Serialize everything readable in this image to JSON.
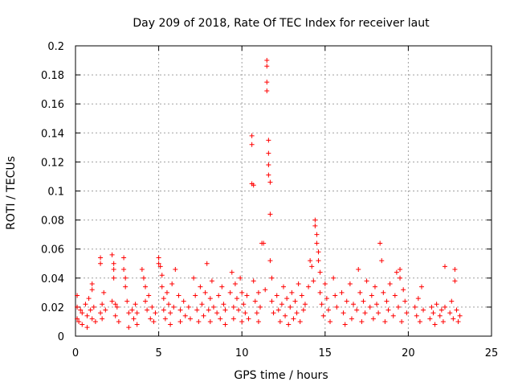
{
  "chart_data": {
    "type": "scatter",
    "title": "Day 209 of 2018, Rate Of TEC Index for receiver laut",
    "xlabel": "GPS time / hours",
    "ylabel": "ROTI / TECUs",
    "xlim": [
      0,
      25
    ],
    "ylim": [
      0,
      0.2
    ],
    "grid": true,
    "marker": "+",
    "x_ticks": [
      "0",
      "5",
      "10",
      "15",
      "20",
      "25"
    ],
    "y_ticks": [
      "0",
      "0.02",
      "0.04",
      "0.06",
      "0.08",
      "0.1",
      "0.12",
      "0.14",
      "0.16",
      "0.18",
      "0.2"
    ],
    "series": [
      {
        "color": "#ff0000",
        "points": [
          [
            0.1,
            0.012
          ],
          [
            0.1,
            0.02
          ],
          [
            0.1,
            0.028
          ],
          [
            0.2,
            0.01
          ],
          [
            0.3,
            0.018
          ],
          [
            0.4,
            0.016
          ],
          [
            0.4,
            0.008
          ],
          [
            0.6,
            0.022
          ],
          [
            0.7,
            0.014
          ],
          [
            0.7,
            0.006
          ],
          [
            0.8,
            0.026
          ],
          [
            0.9,
            0.018
          ],
          [
            1.0,
            0.012
          ],
          [
            1.0,
            0.036
          ],
          [
            1.0,
            0.032
          ],
          [
            1.1,
            0.02
          ],
          [
            1.2,
            0.01
          ],
          [
            1.5,
            0.016
          ],
          [
            1.5,
            0.05
          ],
          [
            1.5,
            0.054
          ],
          [
            1.6,
            0.022
          ],
          [
            1.6,
            0.012
          ],
          [
            1.7,
            0.03
          ],
          [
            1.8,
            0.018
          ],
          [
            2.2,
            0.024
          ],
          [
            2.2,
            0.056
          ],
          [
            2.3,
            0.05
          ],
          [
            2.3,
            0.046
          ],
          [
            2.3,
            0.04
          ],
          [
            2.4,
            0.022
          ],
          [
            2.4,
            0.014
          ],
          [
            2.5,
            0.02
          ],
          [
            2.6,
            0.01
          ],
          [
            2.9,
            0.054
          ],
          [
            2.9,
            0.046
          ],
          [
            3.0,
            0.04
          ],
          [
            3.0,
            0.034
          ],
          [
            3.1,
            0.024
          ],
          [
            3.2,
            0.016
          ],
          [
            3.2,
            0.006
          ],
          [
            3.4,
            0.018
          ],
          [
            3.5,
            0.012
          ],
          [
            3.6,
            0.022
          ],
          [
            3.7,
            0.008
          ],
          [
            3.7,
            0.016
          ],
          [
            4.0,
            0.046
          ],
          [
            4.1,
            0.04
          ],
          [
            4.2,
            0.034
          ],
          [
            4.2,
            0.024
          ],
          [
            4.3,
            0.018
          ],
          [
            4.4,
            0.028
          ],
          [
            4.5,
            0.012
          ],
          [
            4.6,
            0.02
          ],
          [
            4.7,
            0.01
          ],
          [
            4.8,
            0.016
          ],
          [
            5.0,
            0.05
          ],
          [
            5.0,
            0.054
          ],
          [
            5.1,
            0.048
          ],
          [
            5.2,
            0.042
          ],
          [
            5.2,
            0.034
          ],
          [
            5.3,
            0.026
          ],
          [
            5.3,
            0.018
          ],
          [
            5.4,
            0.012
          ],
          [
            5.5,
            0.03
          ],
          [
            5.6,
            0.022
          ],
          [
            5.7,
            0.016
          ],
          [
            5.7,
            0.008
          ],
          [
            5.8,
            0.036
          ],
          [
            5.9,
            0.02
          ],
          [
            6.0,
            0.046
          ],
          [
            6.2,
            0.028
          ],
          [
            6.3,
            0.018
          ],
          [
            6.3,
            0.01
          ],
          [
            6.5,
            0.024
          ],
          [
            6.6,
            0.014
          ],
          [
            6.8,
            0.02
          ],
          [
            6.9,
            0.012
          ],
          [
            7.1,
            0.04
          ],
          [
            7.2,
            0.028
          ],
          [
            7.3,
            0.018
          ],
          [
            7.4,
            0.01
          ],
          [
            7.5,
            0.034
          ],
          [
            7.6,
            0.022
          ],
          [
            7.7,
            0.014
          ],
          [
            7.8,
            0.03
          ],
          [
            7.9,
            0.05
          ],
          [
            8.0,
            0.018
          ],
          [
            8.1,
            0.026
          ],
          [
            8.1,
            0.01
          ],
          [
            8.2,
            0.038
          ],
          [
            8.3,
            0.02
          ],
          [
            8.5,
            0.016
          ],
          [
            8.6,
            0.028
          ],
          [
            8.7,
            0.012
          ],
          [
            8.8,
            0.034
          ],
          [
            8.9,
            0.022
          ],
          [
            9.0,
            0.018
          ],
          [
            9.0,
            0.008
          ],
          [
            9.3,
            0.03
          ],
          [
            9.4,
            0.044
          ],
          [
            9.5,
            0.02
          ],
          [
            9.5,
            0.012
          ],
          [
            9.6,
            0.036
          ],
          [
            9.7,
            0.026
          ],
          [
            9.8,
            0.018
          ],
          [
            9.9,
            0.04
          ],
          [
            10.0,
            0.01
          ],
          [
            10.0,
            0.03
          ],
          [
            10.1,
            0.022
          ],
          [
            10.2,
            0.016
          ],
          [
            10.3,
            0.028
          ],
          [
            10.4,
            0.012
          ],
          [
            10.6,
            0.138
          ],
          [
            10.6,
            0.132
          ],
          [
            10.6,
            0.105
          ],
          [
            10.7,
            0.104
          ],
          [
            10.7,
            0.038
          ],
          [
            10.8,
            0.024
          ],
          [
            10.9,
            0.016
          ],
          [
            11.0,
            0.03
          ],
          [
            11.0,
            0.01
          ],
          [
            11.1,
            0.02
          ],
          [
            11.2,
            0.064
          ],
          [
            11.3,
            0.064
          ],
          [
            11.4,
            0.032
          ],
          [
            11.5,
            0.19
          ],
          [
            11.5,
            0.186
          ],
          [
            11.5,
            0.175
          ],
          [
            11.5,
            0.169
          ],
          [
            11.6,
            0.135
          ],
          [
            11.6,
            0.126
          ],
          [
            11.6,
            0.118
          ],
          [
            11.6,
            0.111
          ],
          [
            11.7,
            0.106
          ],
          [
            11.7,
            0.084
          ],
          [
            11.7,
            0.052
          ],
          [
            11.8,
            0.04
          ],
          [
            11.8,
            0.024
          ],
          [
            11.9,
            0.016
          ],
          [
            12.1,
            0.028
          ],
          [
            12.2,
            0.018
          ],
          [
            12.3,
            0.01
          ],
          [
            12.4,
            0.022
          ],
          [
            12.5,
            0.034
          ],
          [
            12.6,
            0.014
          ],
          [
            12.7,
            0.026
          ],
          [
            12.8,
            0.008
          ],
          [
            12.9,
            0.02
          ],
          [
            13.0,
            0.03
          ],
          [
            13.1,
            0.012
          ],
          [
            13.2,
            0.024
          ],
          [
            13.3,
            0.016
          ],
          [
            13.4,
            0.036
          ],
          [
            13.5,
            0.01
          ],
          [
            13.6,
            0.028
          ],
          [
            13.7,
            0.018
          ],
          [
            13.8,
            0.022
          ],
          [
            14.0,
            0.034
          ],
          [
            14.1,
            0.052
          ],
          [
            14.2,
            0.048
          ],
          [
            14.3,
            0.038
          ],
          [
            14.4,
            0.08
          ],
          [
            14.4,
            0.076
          ],
          [
            14.5,
            0.07
          ],
          [
            14.5,
            0.064
          ],
          [
            14.6,
            0.058
          ],
          [
            14.6,
            0.052
          ],
          [
            14.7,
            0.044
          ],
          [
            14.7,
            0.03
          ],
          [
            14.8,
            0.022
          ],
          [
            14.9,
            0.014
          ],
          [
            15.0,
            0.036
          ],
          [
            15.1,
            0.026
          ],
          [
            15.2,
            0.018
          ],
          [
            15.3,
            0.01
          ],
          [
            15.5,
            0.04
          ],
          [
            15.6,
            0.028
          ],
          [
            15.7,
            0.02
          ],
          [
            16.0,
            0.03
          ],
          [
            16.1,
            0.016
          ],
          [
            16.2,
            0.008
          ],
          [
            16.3,
            0.024
          ],
          [
            16.5,
            0.036
          ],
          [
            16.6,
            0.012
          ],
          [
            16.7,
            0.022
          ],
          [
            16.9,
            0.018
          ],
          [
            17.0,
            0.046
          ],
          [
            17.1,
            0.03
          ],
          [
            17.2,
            0.01
          ],
          [
            17.3,
            0.024
          ],
          [
            17.4,
            0.016
          ],
          [
            17.5,
            0.038
          ],
          [
            17.7,
            0.02
          ],
          [
            17.8,
            0.028
          ],
          [
            17.9,
            0.012
          ],
          [
            18.0,
            0.034
          ],
          [
            18.1,
            0.022
          ],
          [
            18.2,
            0.016
          ],
          [
            18.3,
            0.064
          ],
          [
            18.4,
            0.052
          ],
          [
            18.5,
            0.03
          ],
          [
            18.6,
            0.01
          ],
          [
            18.7,
            0.024
          ],
          [
            18.8,
            0.018
          ],
          [
            18.9,
            0.036
          ],
          [
            19.1,
            0.014
          ],
          [
            19.2,
            0.028
          ],
          [
            19.3,
            0.044
          ],
          [
            19.4,
            0.02
          ],
          [
            19.5,
            0.046
          ],
          [
            19.5,
            0.04
          ],
          [
            19.6,
            0.01
          ],
          [
            19.7,
            0.032
          ],
          [
            19.8,
            0.024
          ],
          [
            19.9,
            0.016
          ],
          [
            20.4,
            0.02
          ],
          [
            20.5,
            0.014
          ],
          [
            20.6,
            0.026
          ],
          [
            20.7,
            0.01
          ],
          [
            20.8,
            0.034
          ],
          [
            20.9,
            0.018
          ],
          [
            21.3,
            0.012
          ],
          [
            21.4,
            0.02
          ],
          [
            21.5,
            0.016
          ],
          [
            21.6,
            0.008
          ],
          [
            21.7,
            0.022
          ],
          [
            21.9,
            0.014
          ],
          [
            22.0,
            0.018
          ],
          [
            22.1,
            0.01
          ],
          [
            22.2,
            0.048
          ],
          [
            22.2,
            0.02
          ],
          [
            22.5,
            0.016
          ],
          [
            22.6,
            0.024
          ],
          [
            22.7,
            0.012
          ],
          [
            22.8,
            0.046
          ],
          [
            22.8,
            0.038
          ],
          [
            22.9,
            0.018
          ],
          [
            23.0,
            0.01
          ],
          [
            23.1,
            0.014
          ]
        ]
      }
    ]
  }
}
